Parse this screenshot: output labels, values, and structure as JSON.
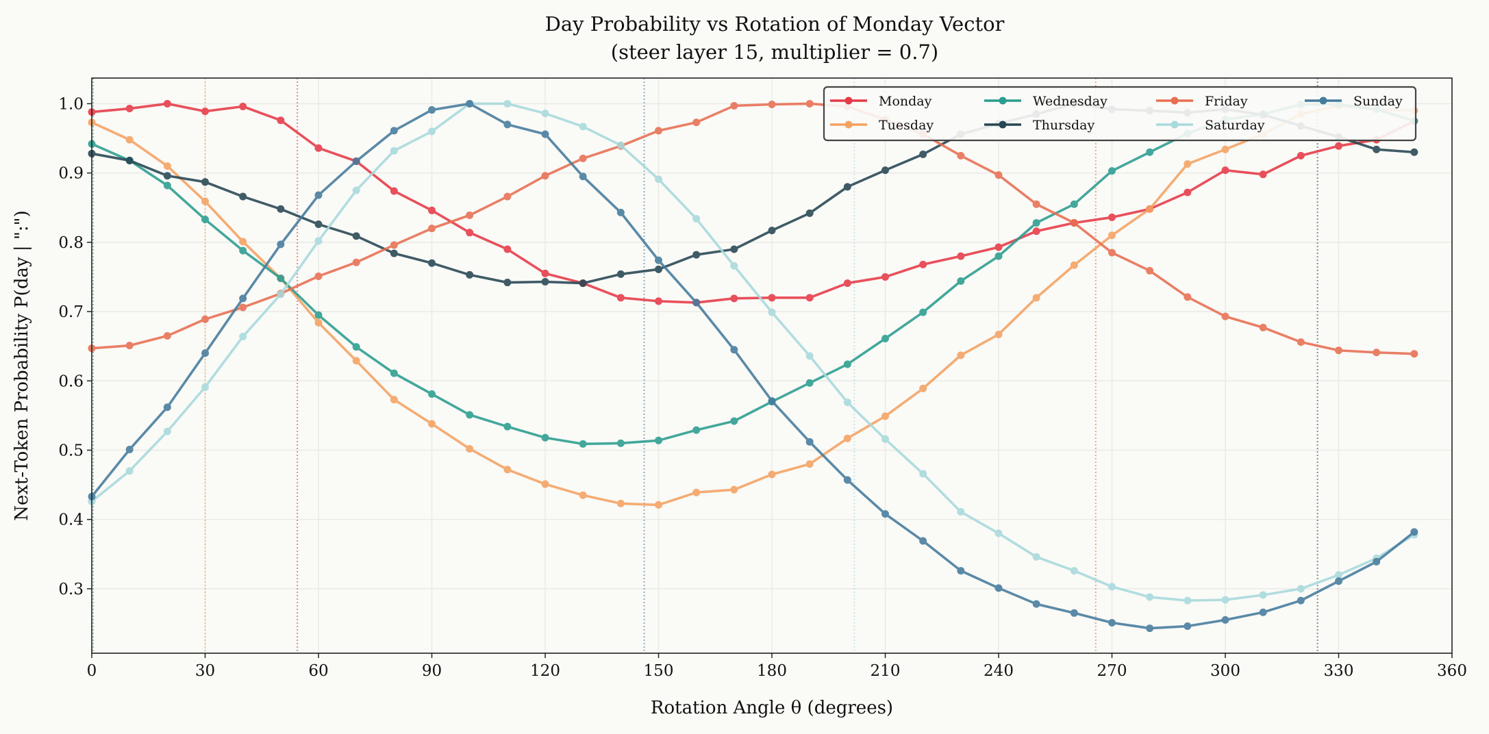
{
  "chart_data": {
    "type": "line",
    "title": "Day Probability vs Rotation of Monday Vector",
    "subtitle": "(steer layer 15,  multiplier = 0.7)",
    "xlabel": "Rotation Angle  θ  (degrees)",
    "ylabel": "Next-Token Probability  P(day | \":\")",
    "xlim": [
      0,
      360
    ],
    "ylim": [
      0.207,
      1.037
    ],
    "xticks": [
      "0",
      "30",
      "60",
      "90",
      "120",
      "150",
      "180",
      "210",
      "240",
      "270",
      "300",
      "330",
      "360"
    ],
    "yticks": [
      "0.3",
      "0.4",
      "0.5",
      "0.6",
      "0.7",
      "0.8",
      "0.9",
      "1.0"
    ],
    "grid": true,
    "legend_placement": "top-right",
    "legend_columns": 4,
    "x": [
      0,
      10,
      20,
      30,
      40,
      50,
      60,
      70,
      80,
      90,
      100,
      110,
      120,
      130,
      140,
      150,
      160,
      170,
      180,
      190,
      200,
      210,
      220,
      230,
      240,
      250,
      260,
      270,
      280,
      290,
      300,
      310,
      320,
      330,
      340,
      350
    ],
    "series": [
      {
        "name": "Monday",
        "color": "#E63946",
        "values": [
          0.988,
          0.993,
          1.0,
          0.989,
          0.996,
          0.976,
          0.936,
          0.917,
          0.874,
          0.846,
          0.814,
          0.79,
          0.755,
          0.741,
          0.72,
          0.715,
          0.713,
          0.719,
          0.72,
          0.72,
          0.741,
          0.75,
          0.768,
          0.78,
          0.793,
          0.816,
          0.828,
          0.836,
          0.848,
          0.872,
          0.904,
          0.898,
          0.925,
          0.939,
          0.948,
          0.975
        ]
      },
      {
        "name": "Tuesday",
        "color": "#F4A261",
        "values": [
          0.973,
          0.948,
          0.91,
          0.859,
          0.801,
          0.748,
          0.684,
          0.629,
          0.573,
          0.538,
          0.502,
          0.472,
          0.451,
          0.435,
          0.423,
          0.421,
          0.439,
          0.443,
          0.465,
          0.48,
          0.517,
          0.549,
          0.589,
          0.637,
          0.667,
          0.72,
          0.767,
          0.81,
          0.848,
          0.913,
          0.934,
          0.956,
          0.985,
          0.997,
          0.992,
          0.99
        ]
      },
      {
        "name": "Wednesday",
        "color": "#2A9D8F",
        "values": [
          0.942,
          0.918,
          0.882,
          0.833,
          0.788,
          0.748,
          0.695,
          0.649,
          0.611,
          0.581,
          0.551,
          0.534,
          0.518,
          0.509,
          0.51,
          0.514,
          0.529,
          0.542,
          0.57,
          0.597,
          0.624,
          0.661,
          0.699,
          0.744,
          0.78,
          0.828,
          0.855,
          0.903,
          0.93,
          0.957,
          0.977,
          0.985,
          0.999,
          0.999,
          0.992,
          0.975
        ]
      },
      {
        "name": "Thursday",
        "color": "#264653",
        "values": [
          0.928,
          0.918,
          0.896,
          0.887,
          0.866,
          0.848,
          0.826,
          0.809,
          0.784,
          0.77,
          0.753,
          0.742,
          0.743,
          0.741,
          0.754,
          0.761,
          0.782,
          0.79,
          0.817,
          0.842,
          0.88,
          0.904,
          0.927,
          0.956,
          0.971,
          0.985,
          1.0,
          0.992,
          0.99,
          0.987,
          0.992,
          0.984,
          0.968,
          0.952,
          0.934,
          0.93
        ]
      },
      {
        "name": "Friday",
        "color": "#E76F51",
        "values": [
          0.647,
          0.651,
          0.665,
          0.689,
          0.706,
          0.726,
          0.751,
          0.771,
          0.796,
          0.82,
          0.839,
          0.866,
          0.896,
          0.921,
          0.939,
          0.961,
          0.973,
          0.997,
          0.999,
          1.0,
          0.996,
          0.977,
          0.956,
          0.925,
          0.897,
          0.855,
          0.828,
          0.785,
          0.759,
          0.721,
          0.693,
          0.677,
          0.656,
          0.644,
          0.641,
          0.639
        ]
      },
      {
        "name": "Saturday",
        "color": "#A8DADC",
        "values": [
          0.426,
          0.47,
          0.527,
          0.591,
          0.664,
          0.725,
          0.802,
          0.875,
          0.932,
          0.96,
          1.0,
          1.0,
          0.986,
          0.967,
          0.94,
          0.891,
          0.834,
          0.766,
          0.699,
          0.636,
          0.569,
          0.516,
          0.466,
          0.411,
          0.38,
          0.346,
          0.326,
          0.303,
          0.288,
          0.283,
          0.284,
          0.291,
          0.3,
          0.32,
          0.344,
          0.378
        ]
      },
      {
        "name": "Sunday",
        "color": "#457B9D",
        "values": [
          0.433,
          0.501,
          0.562,
          0.64,
          0.719,
          0.797,
          0.868,
          0.917,
          0.961,
          0.991,
          1.0,
          0.97,
          0.956,
          0.895,
          0.843,
          0.774,
          0.713,
          0.645,
          0.571,
          0.512,
          0.457,
          0.408,
          0.369,
          0.326,
          0.301,
          0.278,
          0.265,
          0.251,
          0.243,
          0.246,
          0.255,
          0.266,
          0.283,
          0.311,
          0.339,
          0.382
        ]
      }
    ],
    "reference_lines": [
      {
        "x": 0,
        "color": "#2A9D8F"
      },
      {
        "x": 30,
        "color": "#F4A261"
      },
      {
        "x": 54.4,
        "color": "#E63946"
      },
      {
        "x": 146.2,
        "color": "#457B9D"
      },
      {
        "x": 201.8,
        "color": "#A8DADC"
      },
      {
        "x": 265.7,
        "color": "#E76F51"
      },
      {
        "x": 324.4,
        "color": "#264653"
      }
    ]
  }
}
